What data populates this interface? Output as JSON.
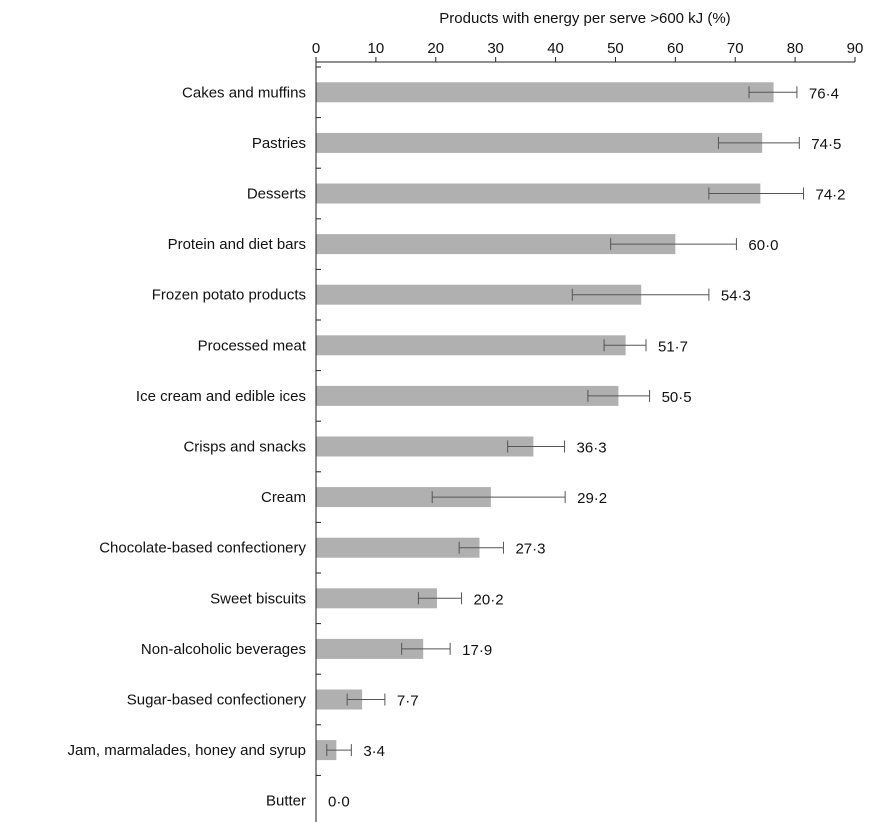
{
  "chart_data": {
    "type": "bar",
    "orientation": "horizontal",
    "title": "",
    "xlabel": "Products with energy per serve >600 kJ (%)",
    "ylabel": "",
    "xlim": [
      0,
      90
    ],
    "xticks": [
      0,
      10,
      20,
      30,
      40,
      50,
      60,
      70,
      80,
      90
    ],
    "x_axis_position": "top",
    "grid": false,
    "bar_color": "#b0b0b0",
    "categories": [
      "Cakes and muffins",
      "Pastries",
      "Desserts",
      "Protein and diet bars",
      "Frozen potato products",
      "Processed meat",
      "Ice cream and edible ices",
      "Crisps and snacks",
      "Cream",
      "Chocolate-based confectionery",
      "Sweet biscuits",
      "Non-alcoholic beverages",
      "Sugar-based confectionery",
      "Jam, marmalades, honey and syrup",
      "Butter"
    ],
    "values": [
      76.4,
      74.5,
      74.2,
      60.0,
      54.3,
      51.7,
      50.5,
      36.3,
      29.2,
      27.3,
      20.2,
      17.9,
      7.7,
      3.4,
      0.0
    ],
    "value_labels": [
      "76·4",
      "74·5",
      "74·2",
      "60·0",
      "54·3",
      "51·7",
      "50·5",
      "36·3",
      "29·2",
      "27·3",
      "20·2",
      "17·9",
      "7·7",
      "3·4",
      "0·0"
    ],
    "error_low": [
      72.3,
      67.2,
      65.6,
      49.2,
      42.8,
      48.1,
      45.4,
      32.0,
      19.4,
      23.9,
      17.1,
      14.3,
      5.2,
      1.8,
      0.0
    ],
    "error_high": [
      80.3,
      80.7,
      81.4,
      70.2,
      65.6,
      55.1,
      55.7,
      41.5,
      41.6,
      31.3,
      24.3,
      22.4,
      11.5,
      5.9,
      0.0
    ]
  }
}
